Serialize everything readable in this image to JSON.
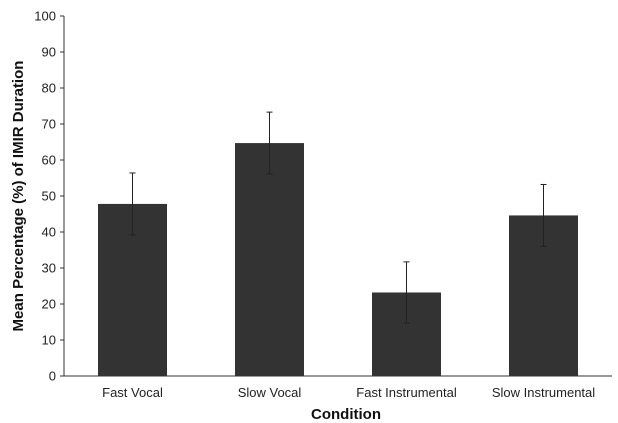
{
  "chart_data": {
    "type": "bar",
    "title": "",
    "xlabel": "Condition",
    "ylabel": "Mean Percentage (%) of IMIR Duration",
    "ylim": [
      0,
      100
    ],
    "yticks": [
      0,
      10,
      20,
      30,
      40,
      50,
      60,
      70,
      80,
      90,
      100
    ],
    "categories": [
      "Fast Vocal",
      "Slow Vocal",
      "Fast Instrumental",
      "Slow Instrumental"
    ],
    "values": [
      47.8,
      64.7,
      23.2,
      44.6
    ],
    "error": [
      8.6,
      8.6,
      8.5,
      8.6
    ],
    "grid": false,
    "legend": "none",
    "bar_color": "#333333",
    "error_color": "#222222",
    "axis_color": "#333333"
  }
}
